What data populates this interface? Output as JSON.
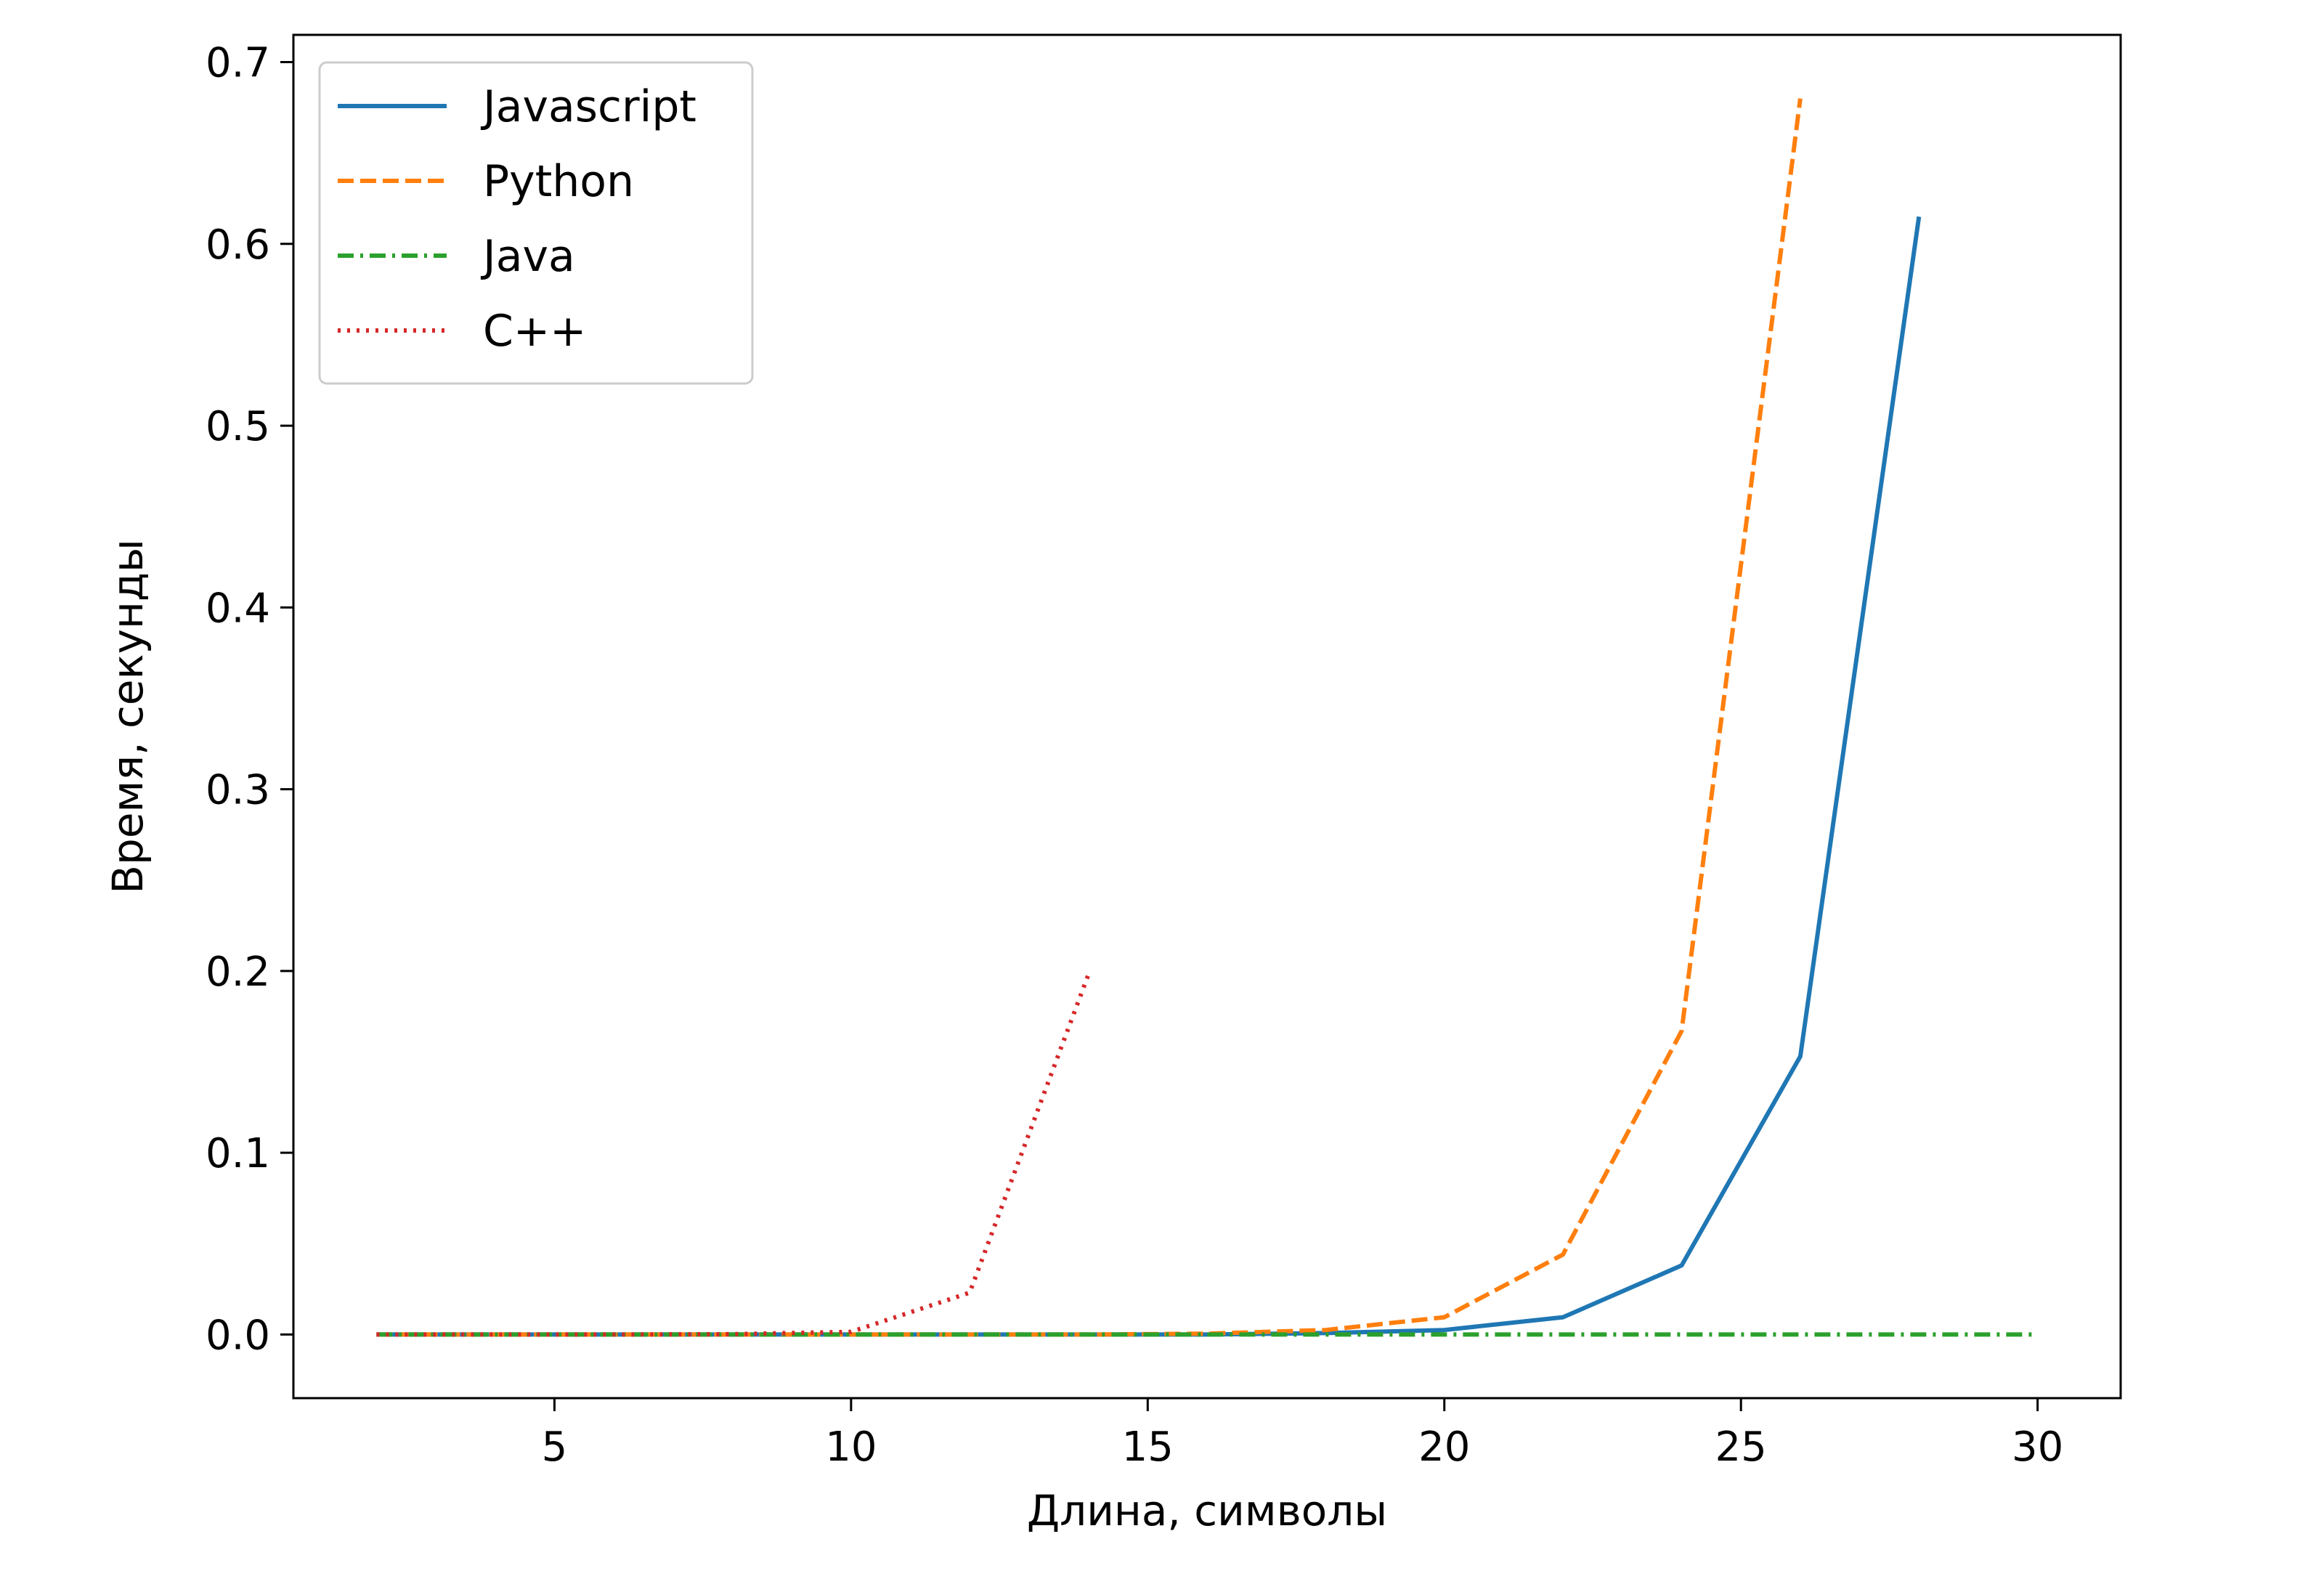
{
  "chart_data": {
    "type": "line",
    "title": "",
    "xlabel": "Длина, символы",
    "ylabel": "Время, секунды",
    "xlim": [
      0.6,
      31.4
    ],
    "ylim": [
      -0.035,
      0.715
    ],
    "xticks": [
      5,
      10,
      15,
      20,
      25,
      30
    ],
    "yticks": [
      0.0,
      0.1,
      0.2,
      0.3,
      0.4,
      0.5,
      0.6,
      0.7
    ],
    "xtick_labels": [
      "5",
      "10",
      "15",
      "20",
      "25",
      "30"
    ],
    "ytick_labels": [
      "0.0",
      "0.1",
      "0.2",
      "0.3",
      "0.4",
      "0.5",
      "0.6",
      "0.7"
    ],
    "grid": false,
    "legend_position": "top-left",
    "series": [
      {
        "name": "Javascript",
        "color": "#1f77b4",
        "style": "solid",
        "x": [
          2,
          4,
          6,
          8,
          10,
          12,
          14,
          16,
          18,
          20,
          22,
          24,
          26,
          28
        ],
        "y": [
          0,
          0,
          0,
          0,
          0,
          0,
          0,
          0,
          0.0008,
          0.0025,
          0.0095,
          0.038,
          0.153,
          0.615
        ]
      },
      {
        "name": "Python",
        "color": "#ff7f0e",
        "style": "dashed",
        "x": [
          2,
          4,
          6,
          8,
          10,
          12,
          14,
          16,
          18,
          20,
          22,
          24,
          26
        ],
        "y": [
          0,
          0,
          0,
          0,
          0,
          0,
          0,
          0.0005,
          0.0025,
          0.0095,
          0.044,
          0.167,
          0.68
        ]
      },
      {
        "name": "Java",
        "color": "#2ca02c",
        "style": "dashdot",
        "x": [
          2,
          4,
          6,
          8,
          10,
          12,
          14,
          16,
          18,
          20,
          22,
          24,
          26,
          28,
          30
        ],
        "y": [
          0,
          0,
          0,
          0,
          0,
          0,
          0,
          0,
          0,
          0,
          0,
          0,
          0,
          0,
          0
        ]
      },
      {
        "name": "C++",
        "color": "#d62728",
        "style": "dotted",
        "x": [
          2,
          4,
          6,
          8,
          10,
          12,
          14
        ],
        "y": [
          0,
          0,
          0,
          0.0002,
          0.0015,
          0.023,
          0.198
        ]
      }
    ]
  }
}
